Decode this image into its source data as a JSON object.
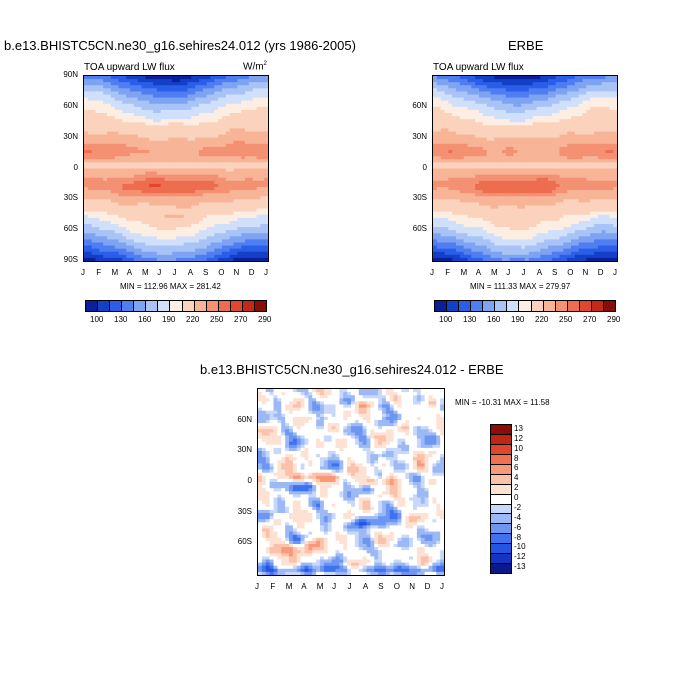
{
  "chart_data": [
    {
      "type": "heatmap",
      "title": "b.e13.BHISTC5CN.ne30_g16.sehires24.012 (yrs 1986-2005)",
      "left_label": "TOA upward LW flux",
      "units": "W/m",
      "units_sup": "2",
      "x_ticks": [
        "J",
        "F",
        "M",
        "A",
        "M",
        "J",
        "J",
        "A",
        "S",
        "O",
        "N",
        "D",
        "J"
      ],
      "y_ticks": [
        "90N",
        "60N",
        "30N",
        "0",
        "30S",
        "60S",
        "90S"
      ],
      "stats": "MIN = 112.96 MAX = 281.42",
      "min": 112.96,
      "max": 281.42,
      "colorbar_labels": [
        "100",
        "130",
        "160",
        "190",
        "220",
        "250",
        "270",
        "290"
      ]
    },
    {
      "type": "heatmap",
      "title": "ERBE",
      "left_label": "TOA upward LW flux",
      "x_ticks": [
        "J",
        "F",
        "M",
        "A",
        "M",
        "J",
        "J",
        "A",
        "S",
        "O",
        "N",
        "D",
        "J"
      ],
      "y_ticks": [
        "60N",
        "30N",
        "0",
        "30S",
        "60S"
      ],
      "stats": "MIN = 111.33 MAX = 279.97",
      "min": 111.33,
      "max": 279.97,
      "colorbar_labels": [
        "100",
        "130",
        "160",
        "190",
        "220",
        "250",
        "270",
        "290"
      ]
    },
    {
      "type": "heatmap",
      "title": "b.e13.BHISTC5CN.ne30_g16.sehires24.012 - ERBE",
      "x_ticks": [
        "J",
        "F",
        "M",
        "A",
        "M",
        "J",
        "J",
        "A",
        "S",
        "O",
        "N",
        "D",
        "J"
      ],
      "y_ticks": [
        "60N",
        "30N",
        "0",
        "30S",
        "60S"
      ],
      "stats": "MIN = -10.31 MAX =  11.58",
      "min": -10.31,
      "max": 11.58,
      "colorbar_labels": [
        "13",
        "12",
        "10",
        "8",
        "6",
        "4",
        "2",
        "0",
        "-2",
        "-4",
        "-6",
        "-8",
        "-10",
        "-12",
        "-13"
      ]
    }
  ],
  "colors": {
    "flux_scale": [
      "#0a1f9a",
      "#1440c8",
      "#2a5ee8",
      "#4f7ef0",
      "#7ea3f2",
      "#a8c3f5",
      "#d0e0fa",
      "#fdeee4",
      "#fbd3bd",
      "#f7b497",
      "#f39172",
      "#ee6c4f",
      "#e24530",
      "#c42818",
      "#8a0e08"
    ],
    "diff_scale": [
      "#0a1a8a",
      "#1434c2",
      "#2354e2",
      "#3f72ee",
      "#6c96f2",
      "#9cb9f5",
      "#c7d8fa",
      "#ffffff",
      "#fde2d4",
      "#fbc2a9",
      "#f79a7c",
      "#f0714f",
      "#e1452b",
      "#c02614",
      "#8a0d08"
    ]
  }
}
